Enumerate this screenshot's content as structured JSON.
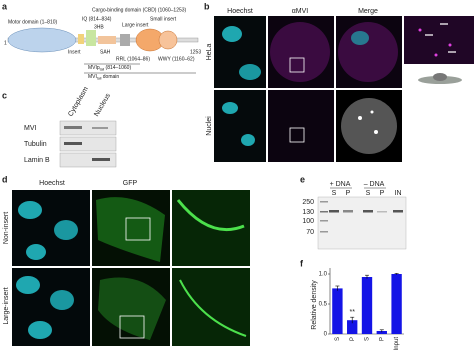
{
  "panels": {
    "a": "a",
    "b": "b",
    "c": "c",
    "d": "d",
    "e": "e",
    "f": "f"
  },
  "diagram": {
    "start": "1",
    "end": "1253",
    "motor": "Motor domain (1–810)",
    "iq": "IQ (814–834)",
    "hb": "3HB",
    "insert": "Insert",
    "sah": "SAH",
    "cbd": "Cargo-binding domain (CBD) (1060–1253)",
    "large_insert": "Large insert",
    "small_insert": "Small insert",
    "rrl": "RRL (1064–86)",
    "wwy": "WWY (1160–62)",
    "ptail": "MVIp",
    "ptail_sub": "tail",
    "ptail_range": " (814–1060)",
    "tail": "MVI",
    "tail_sub": "tail",
    "tail_rest": " domain"
  },
  "microscopy_b": {
    "columns": [
      "Hoechst",
      "αMVI",
      "Merge"
    ],
    "rows": [
      "HeLa",
      "Nuclei"
    ]
  },
  "blot_c": {
    "columns": [
      "Cytoplasm",
      "Nucleus"
    ],
    "rows": [
      "MVI",
      "Tubulin",
      "Lamin B"
    ]
  },
  "microscopy_d": {
    "columns": [
      "Hoechst",
      "GFP"
    ],
    "rows": [
      "Non-insert",
      "Large-insert"
    ]
  },
  "gel_e": {
    "groups": [
      "+ DNA",
      "– DNA"
    ],
    "lanes": [
      "S",
      "P",
      "S",
      "P",
      "IN"
    ],
    "markers": [
      "250",
      "130",
      "100",
      "70"
    ]
  },
  "chart_data": {
    "type": "bar",
    "ylabel": "Relative density",
    "categories": [
      "S",
      "P",
      "S",
      "P",
      "Input"
    ],
    "values": [
      0.76,
      0.23,
      0.95,
      0.05,
      1.0
    ],
    "errors": [
      0.04,
      0.05,
      0.03,
      0.02,
      0.01
    ],
    "color": "#1414e6",
    "annotation": "**",
    "ylim": [
      0,
      1.1
    ],
    "yticks": [
      0,
      0.5,
      {
        "value": 1,
        "label": "1.0"
      }
    ]
  }
}
